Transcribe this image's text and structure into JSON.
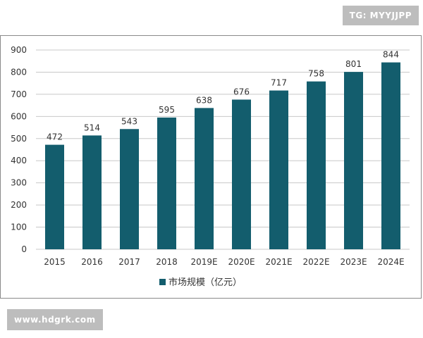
{
  "watermarks": {
    "top_right": "TG: MYYJJPP",
    "bottom_left": "www.hdgrk.com"
  },
  "chart_data": {
    "type": "bar",
    "categories": [
      "2015",
      "2016",
      "2017",
      "2018",
      "2019E",
      "2020E",
      "2021E",
      "2022E",
      "2023E",
      "2024E"
    ],
    "series": [
      {
        "name": "市场规模（亿元）",
        "values": [
          472,
          514,
          543,
          595,
          638,
          676,
          717,
          758,
          801,
          844
        ],
        "color": "#135d6d"
      }
    ],
    "ylim": [
      0,
      900
    ],
    "yticks": [
      0,
      100,
      200,
      300,
      400,
      500,
      600,
      700,
      800,
      900
    ],
    "grid": true,
    "legend": "bottom",
    "data_labels": true
  }
}
